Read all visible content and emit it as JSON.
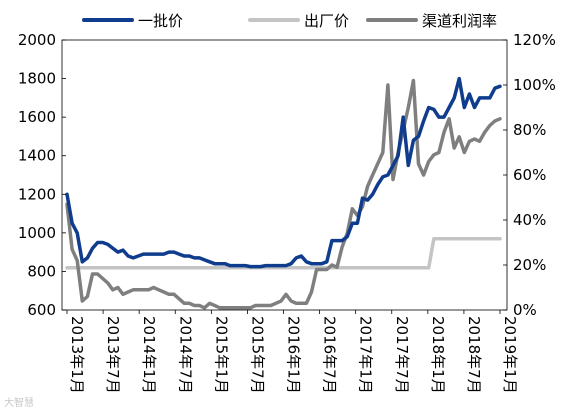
{
  "chart_data": {
    "type": "line",
    "title": "",
    "legend": {
      "placement": "top"
    },
    "x_tick_labels": [
      "2013年1月",
      "2013年7月",
      "2014年1月",
      "2014年7月",
      "2015年1月",
      "2015年7月",
      "2016年1月",
      "2016年7月",
      "2017年1月",
      "2017年7月",
      "2018年1月",
      "2018年7月",
      "2019年1月"
    ],
    "ylim_left": [
      600,
      2000
    ],
    "yticks_left": [
      600,
      800,
      1000,
      1200,
      1400,
      1600,
      1800,
      2000
    ],
    "ylim_right": [
      0,
      120
    ],
    "yticks_right": [
      0,
      20,
      40,
      60,
      80,
      100,
      120
    ],
    "yticks_right_labels": [
      "0%",
      "20%",
      "40%",
      "60%",
      "80%",
      "100%",
      "120%"
    ],
    "series": [
      {
        "name": "一批价",
        "axis": "left",
        "color": "#0f3c8c",
        "values": [
          1200,
          1050,
          1000,
          850,
          870,
          920,
          950,
          950,
          940,
          920,
          900,
          910,
          880,
          870,
          880,
          890,
          890,
          890,
          890,
          890,
          900,
          900,
          890,
          880,
          880,
          870,
          870,
          860,
          850,
          840,
          840,
          840,
          830,
          830,
          830,
          830,
          825,
          825,
          825,
          830,
          830,
          830,
          830,
          830,
          840,
          870,
          880,
          850,
          840,
          840,
          840,
          850,
          960,
          960,
          960,
          980,
          1050,
          1050,
          1180,
          1170,
          1200,
          1250,
          1290,
          1300,
          1350,
          1400,
          1600,
          1350,
          1480,
          1500,
          1580,
          1650,
          1640,
          1600,
          1600,
          1650,
          1700,
          1800,
          1650,
          1720,
          1650,
          1700,
          1700,
          1700,
          1750,
          1760
        ]
      },
      {
        "name": "出厂价",
        "axis": "left",
        "color": "#c4c4c4",
        "values": [
          819,
          819,
          819,
          819,
          819,
          819,
          819,
          819,
          819,
          819,
          819,
          819,
          819,
          819,
          819,
          819,
          819,
          819,
          819,
          819,
          819,
          819,
          819,
          819,
          819,
          819,
          819,
          819,
          819,
          819,
          819,
          819,
          819,
          819,
          819,
          819,
          819,
          819,
          819,
          819,
          819,
          819,
          819,
          819,
          819,
          819,
          819,
          819,
          819,
          819,
          819,
          819,
          819,
          819,
          819,
          819,
          819,
          819,
          819,
          819,
          819,
          819,
          819,
          819,
          819,
          819,
          819,
          819,
          819,
          819,
          819,
          819,
          969,
          969,
          969,
          969,
          969,
          969,
          969,
          969,
          969,
          969,
          969,
          969,
          969,
          969
        ]
      },
      {
        "name": "渠道利润率",
        "axis": "right",
        "color": "#7f7f7f",
        "values": [
          47,
          27,
          22,
          4,
          6,
          16,
          16,
          14,
          12,
          9,
          10,
          7,
          8,
          9,
          9,
          9,
          9,
          10,
          9,
          8,
          7,
          7,
          5,
          3,
          3,
          2,
          2,
          1,
          3,
          2,
          1,
          1,
          1,
          1,
          1,
          1,
          1,
          2,
          2,
          2,
          2,
          3,
          4,
          7,
          4,
          3,
          3,
          3,
          8,
          18,
          18,
          18,
          20,
          19,
          28,
          34,
          45,
          42,
          46,
          55,
          60,
          65,
          70,
          100,
          58,
          70,
          80,
          90,
          102,
          65,
          60,
          66,
          69,
          70,
          79,
          85,
          72,
          77,
          70,
          75,
          76,
          75,
          79,
          82,
          84,
          85
        ]
      }
    ]
  },
  "watermark": "大智慧"
}
